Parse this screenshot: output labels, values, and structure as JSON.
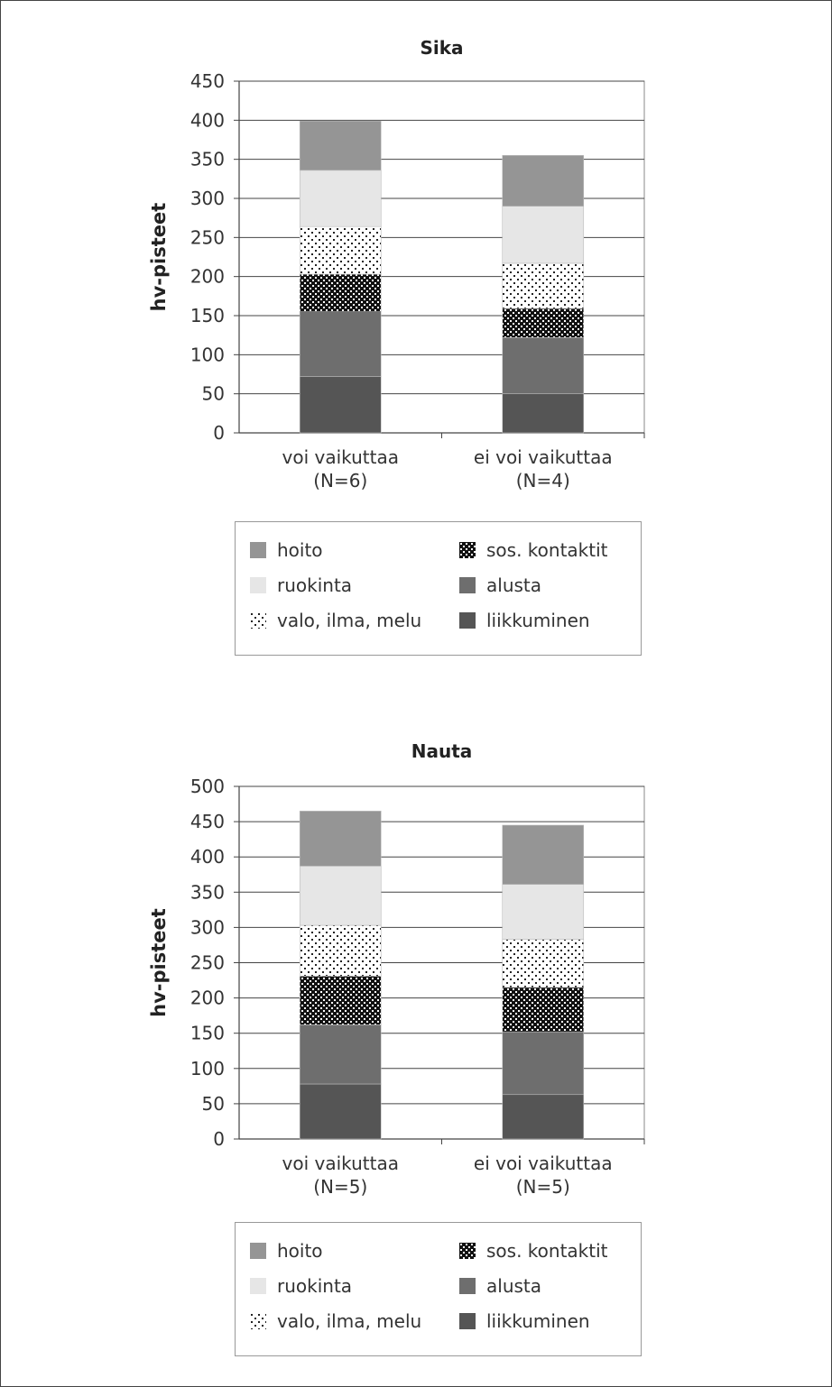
{
  "segments": [
    {
      "key": "liikkuminen",
      "label": "liikkuminen",
      "fill": "#555555",
      "pattern": "solid"
    },
    {
      "key": "alusta",
      "label": "alusta",
      "fill": "#6e6e6e",
      "pattern": "solid"
    },
    {
      "key": "sos_kontaktit",
      "label": "sos. kontaktit",
      "fill": "#111111",
      "pattern": "dots-light"
    },
    {
      "key": "valo_ilma_melu",
      "label": "valo, ilma, melu",
      "fill": "#ffffff",
      "pattern": "dots-dark"
    },
    {
      "key": "ruokinta",
      "label": "ruokinta",
      "fill": "#e6e6e6",
      "pattern": "solid"
    },
    {
      "key": "hoito",
      "label": "hoito",
      "fill": "#959595",
      "pattern": "solid"
    }
  ],
  "legend_order": {
    "left": [
      "hoito",
      "ruokinta",
      "valo_ilma_melu"
    ],
    "right": [
      "sos_kontaktit",
      "alusta",
      "liikkuminen"
    ]
  },
  "chart_data": [
    {
      "type": "bar",
      "stacked": true,
      "title": "Sika",
      "ylabel": "hv-pisteet",
      "ylim": [
        0,
        450
      ],
      "ytick_step": 50,
      "grid": true,
      "legend_position": "below",
      "categories": [
        {
          "line1": "voi vaikuttaa",
          "line2": "(N=6)"
        },
        {
          "line1": "ei voi vaikuttaa",
          "line2": "(N=4)"
        }
      ],
      "series": [
        {
          "name": "liikkuminen",
          "values": [
            72,
            50
          ]
        },
        {
          "name": "alusta",
          "values": [
            83,
            72
          ]
        },
        {
          "name": "sos. kontaktit",
          "values": [
            48,
            37
          ]
        },
        {
          "name": "valo, ilma, melu",
          "values": [
            61,
            58
          ]
        },
        {
          "name": "ruokinta",
          "values": [
            72,
            73
          ]
        },
        {
          "name": "hoito",
          "values": [
            63,
            65
          ]
        }
      ]
    },
    {
      "type": "bar",
      "stacked": true,
      "title": "Nauta",
      "ylabel": "hv-pisteet",
      "ylim": [
        0,
        500
      ],
      "ytick_step": 50,
      "grid": true,
      "legend_position": "below",
      "categories": [
        {
          "line1": "voi vaikuttaa",
          "line2": "(N=5)"
        },
        {
          "line1": "ei voi vaikuttaa",
          "line2": "(N=5)"
        }
      ],
      "series": [
        {
          "name": "liikkuminen",
          "values": [
            78,
            63
          ]
        },
        {
          "name": "alusta",
          "values": [
            84,
            89
          ]
        },
        {
          "name": "sos. kontaktit",
          "values": [
            69,
            63
          ]
        },
        {
          "name": "valo, ilma, melu",
          "values": [
            72,
            68
          ]
        },
        {
          "name": "ruokinta",
          "values": [
            84,
            78
          ]
        },
        {
          "name": "hoito",
          "values": [
            78,
            84
          ]
        }
      ]
    }
  ]
}
